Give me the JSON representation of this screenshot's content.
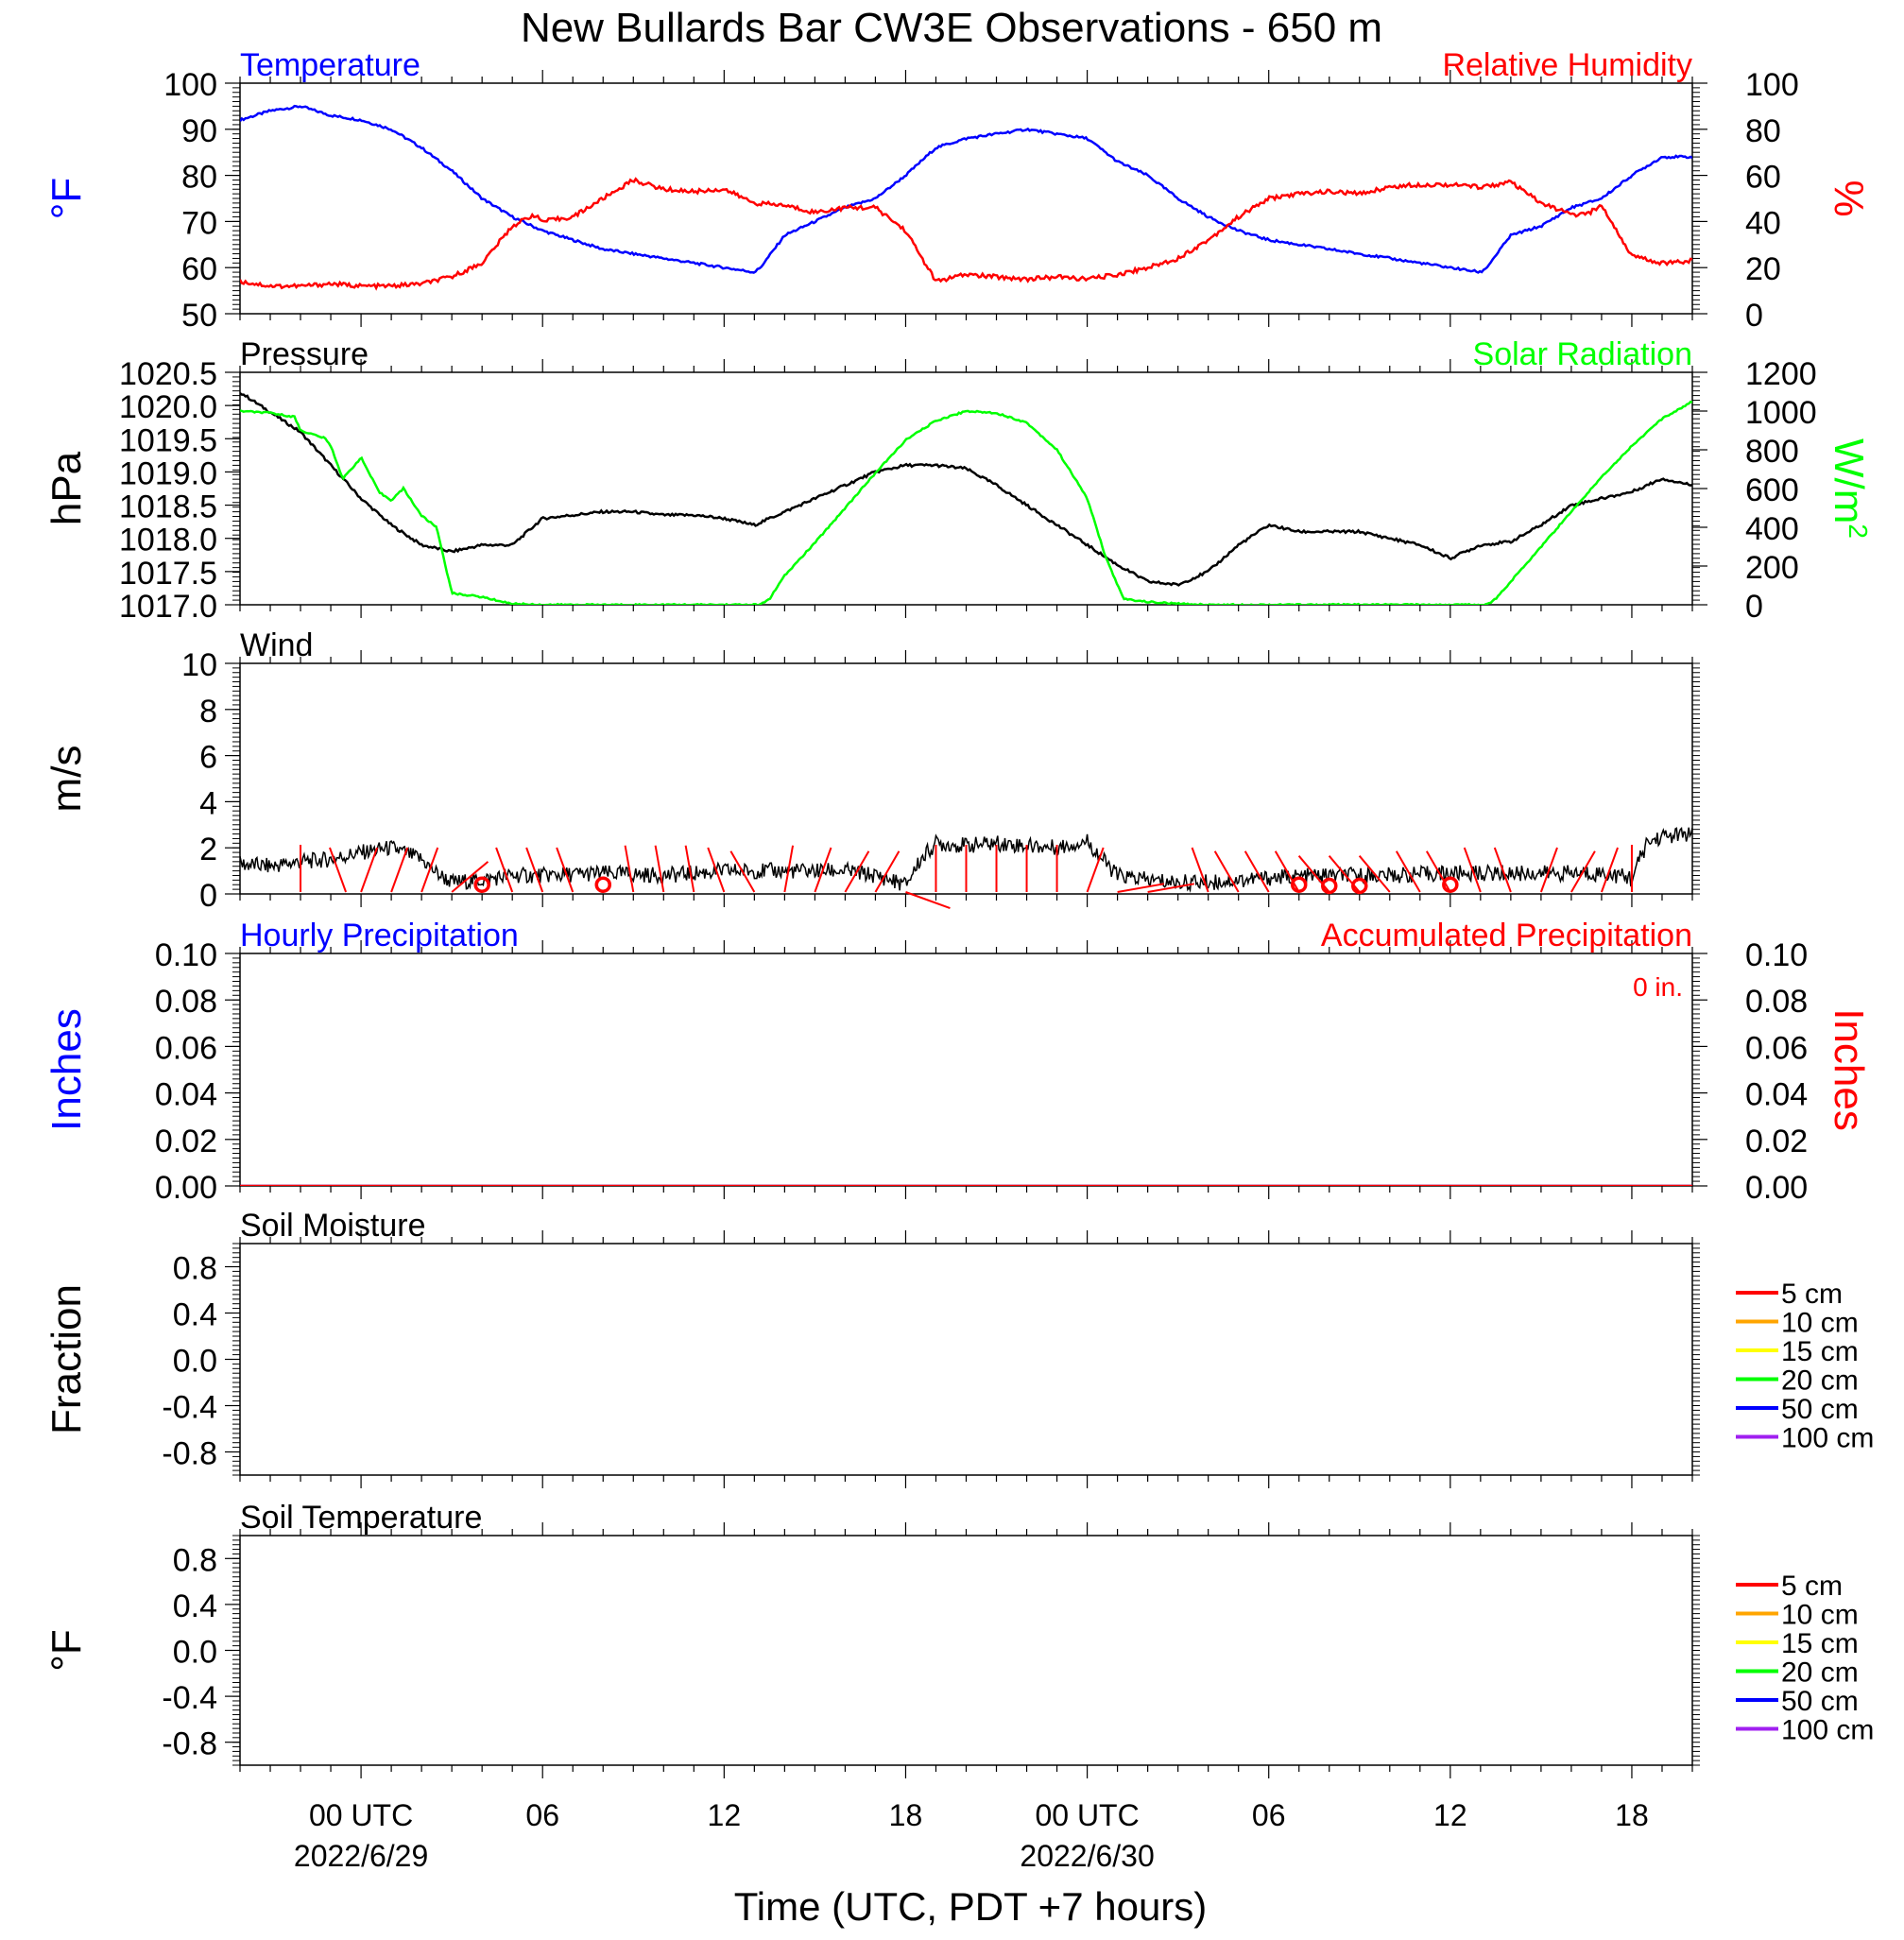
{
  "title": "New Bullards Bar CW3E Observations - 650 m",
  "xlabel": "Time (UTC, PDT +7 hours)",
  "x_ticks": [
    {
      "h": 0,
      "label": "00 UTC",
      "date": "2022/6/29"
    },
    {
      "h": 6,
      "label": "06",
      "date": ""
    },
    {
      "h": 12,
      "label": "12",
      "date": ""
    },
    {
      "h": 18,
      "label": "18",
      "date": ""
    },
    {
      "h": 24,
      "label": "00 UTC",
      "date": "2022/6/30"
    },
    {
      "h": 30,
      "label": "06",
      "date": ""
    },
    {
      "h": 36,
      "label": "12",
      "date": ""
    },
    {
      "h": 42,
      "label": "18",
      "date": ""
    }
  ],
  "colors": {
    "blue": "#0000ff",
    "red": "#ff0000",
    "green": "#00ff00",
    "black": "#000000"
  },
  "chart_data": [
    {
      "type": "line",
      "panel": "temperature_rh",
      "x_unit": "hours since 2022-06-29 00 UTC",
      "xlim": [
        -4,
        44
      ],
      "left_title": "Temperature",
      "right_title": "Relative Humidity",
      "ylabel": "°F",
      "y2label": "%",
      "ylim": [
        50,
        100
      ],
      "y2lim": [
        0,
        100
      ],
      "yticks": [
        "50",
        "60",
        "70",
        "80",
        "90",
        "100"
      ],
      "y2ticks": [
        "0",
        "20",
        "40",
        "60",
        "80",
        "100"
      ],
      "series": [
        {
          "name": "Temperature",
          "axis": "left",
          "color": "#0000ff",
          "x": [
            -4,
            -3,
            -2,
            -1,
            0,
            1,
            2,
            3,
            4,
            5,
            6,
            7,
            8,
            9,
            10,
            11,
            12,
            13,
            13.2,
            14,
            15,
            16,
            17,
            18,
            19,
            20,
            21,
            22,
            23,
            24,
            25,
            26,
            27,
            28,
            29,
            30,
            31,
            32,
            33,
            34,
            35,
            36,
            37,
            37.2,
            38,
            39,
            40,
            41,
            42,
            43,
            44
          ],
          "y": [
            92,
            94,
            95,
            93,
            92,
            90,
            86,
            81,
            75,
            71,
            68,
            66,
            64,
            63,
            62,
            61,
            60,
            59,
            60,
            67,
            70,
            73,
            75,
            80,
            86,
            88,
            89,
            90,
            89,
            88,
            83,
            80,
            75,
            71,
            68,
            66,
            65,
            64,
            63,
            62,
            61,
            60,
            59,
            60,
            67,
            69,
            73,
            75,
            80,
            84,
            84
          ]
        },
        {
          "name": "Relative Humidity",
          "axis": "right",
          "color": "#ff0000",
          "x": [
            -4,
            -3,
            -2,
            -1,
            0,
            1,
            2,
            3,
            4,
            5,
            5.7,
            6,
            7,
            8,
            9,
            10,
            11,
            12,
            13,
            14,
            15,
            16,
            17,
            18,
            19,
            20,
            21,
            22,
            23,
            24,
            25,
            26,
            27,
            28,
            29,
            30,
            31,
            32,
            33,
            34,
            35,
            36,
            37,
            38,
            39,
            40,
            40.5,
            41,
            42,
            43,
            44
          ],
          "y": [
            14,
            12,
            12,
            13,
            12,
            12,
            13,
            16,
            22,
            38,
            43,
            40,
            42,
            50,
            58,
            54,
            53,
            54,
            48,
            47,
            44,
            46,
            46,
            36,
            14,
            17,
            16,
            15,
            16,
            15,
            17,
            20,
            24,
            32,
            42,
            50,
            52,
            53,
            52,
            55,
            56,
            56,
            55,
            57,
            48,
            43,
            43,
            47,
            25,
            22,
            23
          ]
        }
      ]
    },
    {
      "type": "line",
      "panel": "pressure_solar",
      "left_title": "Pressure",
      "right_title": "Solar Radiation",
      "ylabel": "hPa",
      "y2label": "W/m",
      "y2label_sup": "2",
      "ylim": [
        1017.0,
        1020.5
      ],
      "y2lim": [
        0,
        1200
      ],
      "yticks": [
        "1017.0",
        "1017.5",
        "1018.0",
        "1018.5",
        "1019.0",
        "1019.5",
        "1020.0",
        "1020.5"
      ],
      "y2ticks": [
        "0",
        "200",
        "400",
        "600",
        "800",
        "1000",
        "1200"
      ],
      "series": [
        {
          "name": "Pressure",
          "axis": "left",
          "color": "#000000",
          "x": [
            -4,
            -3,
            -2,
            -1,
            0,
            1,
            2,
            3,
            4,
            5,
            6,
            7,
            8,
            9,
            10,
            11,
            12,
            13,
            14,
            15,
            16,
            17,
            18,
            19,
            20,
            21,
            22,
            23,
            24,
            25,
            26,
            27,
            28,
            29,
            30,
            31,
            32,
            33,
            34,
            35,
            36,
            37,
            38,
            39,
            40,
            41,
            42,
            43,
            44
          ],
          "y": [
            1020.2,
            1019.9,
            1019.6,
            1019.1,
            1018.6,
            1018.2,
            1017.9,
            1017.8,
            1017.9,
            1017.9,
            1018.3,
            1018.35,
            1018.4,
            1018.4,
            1018.35,
            1018.35,
            1018.3,
            1018.2,
            1018.4,
            1018.6,
            1018.8,
            1019.0,
            1019.1,
            1019.1,
            1019.05,
            1018.8,
            1018.5,
            1018.2,
            1017.9,
            1017.6,
            1017.35,
            1017.3,
            1017.5,
            1017.9,
            1018.2,
            1018.1,
            1018.1,
            1018.1,
            1018.0,
            1017.9,
            1017.7,
            1017.9,
            1017.95,
            1018.2,
            1018.5,
            1018.6,
            1018.7,
            1018.9,
            1018.8
          ]
        },
        {
          "name": "Solar Radiation",
          "axis": "right",
          "color": "#00ff00",
          "x": [
            -4,
            -3,
            -2.2,
            -2,
            -1.2,
            -1,
            -0.6,
            0,
            0.6,
            1,
            1.4,
            2,
            2.5,
            3,
            4,
            5,
            6,
            8,
            10,
            12,
            13.2,
            13.5,
            14,
            15,
            16,
            17,
            18,
            19,
            20,
            21,
            22,
            23,
            24,
            24.6,
            25.2,
            26,
            27,
            28,
            30,
            32,
            34,
            36,
            37.2,
            37.5,
            38,
            39,
            40,
            41,
            42,
            43,
            44
          ],
          "y": [
            1000,
            990,
            970,
            900,
            860,
            820,
            650,
            760,
            580,
            540,
            600,
            460,
            400,
            60,
            40,
            5,
            0,
            0,
            0,
            0,
            0,
            30,
            150,
            320,
            500,
            680,
            850,
            950,
            1000,
            990,
            940,
            800,
            550,
            250,
            30,
            15,
            5,
            0,
            0,
            0,
            0,
            0,
            0,
            30,
            120,
            300,
            480,
            660,
            820,
            960,
            1050
          ]
        }
      ]
    },
    {
      "type": "line",
      "panel": "wind",
      "left_title": "Wind",
      "ylabel": "m/s",
      "ylim": [
        0,
        10
      ],
      "yticks": [
        "0",
        "2",
        "4",
        "6",
        "8",
        "10"
      ],
      "series": [
        {
          "name": "Wind",
          "color": "#000000",
          "x": [
            -4,
            -3,
            -2,
            -1,
            0,
            1,
            2,
            2.5,
            3,
            4,
            5,
            6,
            8,
            10,
            12,
            14,
            16,
            17,
            18,
            18.5,
            19,
            20,
            21,
            22,
            23,
            24,
            24.5,
            25,
            26,
            27,
            28,
            30,
            32,
            34,
            36,
            38,
            40,
            41,
            42,
            42.5,
            43,
            44
          ],
          "y": [
            1.3,
            1.2,
            1.4,
            1.5,
            1.8,
            2.0,
            1.5,
            0.9,
            0.5,
            0.6,
            0.8,
            0.8,
            0.9,
            0.8,
            1.0,
            1.0,
            1.0,
            0.8,
            0.4,
            1.5,
            2.2,
            2.1,
            2.2,
            2.1,
            2.0,
            2.3,
            1.5,
            0.8,
            0.6,
            0.5,
            0.5,
            0.7,
            0.8,
            0.8,
            0.9,
            0.9,
            0.9,
            0.9,
            0.7,
            2.2,
            2.5,
            2.6
          ]
        },
        {
          "name": "Wind barbs",
          "color": "#ff0000",
          "x": [
            -2,
            -0.5,
            0,
            1,
            2,
            3,
            5,
            6,
            7,
            9,
            10,
            11,
            12,
            13,
            14,
            15,
            16,
            17,
            18,
            19,
            20,
            21,
            22,
            23,
            24,
            25,
            26,
            28,
            29,
            30,
            31,
            32,
            33,
            34,
            35,
            36,
            37,
            38,
            39,
            40,
            41,
            42
          ],
          "dir_deg": [
            0,
            340,
            20,
            20,
            20,
            50,
            340,
            340,
            340,
            350,
            350,
            350,
            340,
            330,
            10,
            20,
            30,
            30,
            110,
            0,
            0,
            0,
            0,
            0,
            20,
            80,
            80,
            340,
            330,
            330,
            330,
            320,
            320,
            320,
            330,
            330,
            340,
            340,
            20,
            30,
            20,
            0
          ]
        },
        {
          "name": "Calm",
          "color": "#ff0000",
          "x": [
            4,
            8,
            31,
            32,
            33,
            36
          ],
          "y": [
            0.4,
            0.4,
            0.4,
            0.35,
            0.35,
            0.4
          ]
        }
      ]
    },
    {
      "type": "line",
      "panel": "precipitation",
      "left_title": "Hourly Precipitation",
      "right_title": "Accumulated Precipitation",
      "annotation": "0 in.",
      "ylabel": "Inches",
      "y2label": "Inches",
      "ylim": [
        0,
        0.1
      ],
      "y2lim": [
        0,
        0.1
      ],
      "yticks": [
        "0.00",
        "0.02",
        "0.04",
        "0.06",
        "0.08",
        "0.10"
      ],
      "y2ticks": [
        "0.00",
        "0.02",
        "0.04",
        "0.06",
        "0.08",
        "0.10"
      ],
      "series": [
        {
          "name": "Hourly Precipitation",
          "axis": "left",
          "color": "#0000ff",
          "x": [
            -4,
            44
          ],
          "y": [
            0,
            0
          ]
        },
        {
          "name": "Accumulated Precipitation",
          "axis": "right",
          "color": "#ff0000",
          "x": [
            -4,
            44
          ],
          "y": [
            0,
            0
          ]
        }
      ]
    },
    {
      "type": "line",
      "panel": "soil_moisture",
      "left_title": "Soil Moisture",
      "ylabel": "Fraction",
      "ylim": [
        -1.0,
        1.0
      ],
      "yticks": [
        "-0.8",
        "-0.4",
        "0.0",
        "0.4",
        "0.8"
      ],
      "legend": [
        {
          "name": "5 cm",
          "color": "#ff0000"
        },
        {
          "name": "10 cm",
          "color": "#ffa500"
        },
        {
          "name": "15 cm",
          "color": "#ffff00"
        },
        {
          "name": "20 cm",
          "color": "#00ff00"
        },
        {
          "name": "50 cm",
          "color": "#0000ff"
        },
        {
          "name": "100 cm",
          "color": "#a020f0"
        }
      ],
      "series": []
    },
    {
      "type": "line",
      "panel": "soil_temperature",
      "left_title": "Soil Temperature",
      "ylabel": "°F",
      "ylim": [
        -1.0,
        1.0
      ],
      "yticks": [
        "-0.8",
        "-0.4",
        "0.0",
        "0.4",
        "0.8"
      ],
      "legend": [
        {
          "name": "5 cm",
          "color": "#ff0000"
        },
        {
          "name": "10 cm",
          "color": "#ffa500"
        },
        {
          "name": "15 cm",
          "color": "#ffff00"
        },
        {
          "name": "20 cm",
          "color": "#00ff00"
        },
        {
          "name": "50 cm",
          "color": "#0000ff"
        },
        {
          "name": "100 cm",
          "color": "#a020f0"
        }
      ],
      "series": []
    }
  ]
}
